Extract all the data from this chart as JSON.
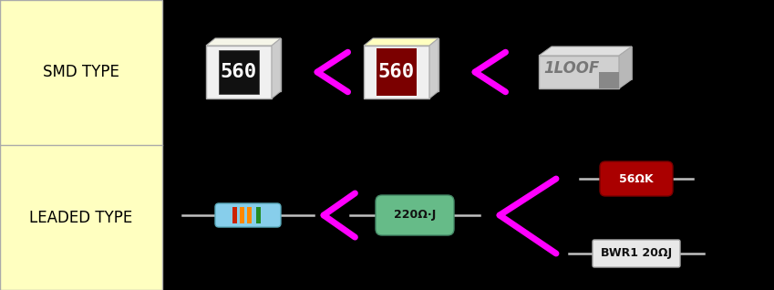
{
  "bg_color": "#000000",
  "left_panel_color": "#FFFFC0",
  "left_panel_border": "#AAAAAA",
  "label_smd": "SMD TYPE",
  "label_leaded": "LEADED TYPE",
  "label_color": "#000000",
  "label_fontsize": 12,
  "lt_color": "#FF00FF",
  "smd1_label": "560",
  "smd2_label": "560",
  "smd3_label": "1LOOF",
  "leaded2_label": "220Ω·J",
  "leaded3_label": "56ΩK",
  "leaded4_label": "BWR1 20ΩJ"
}
